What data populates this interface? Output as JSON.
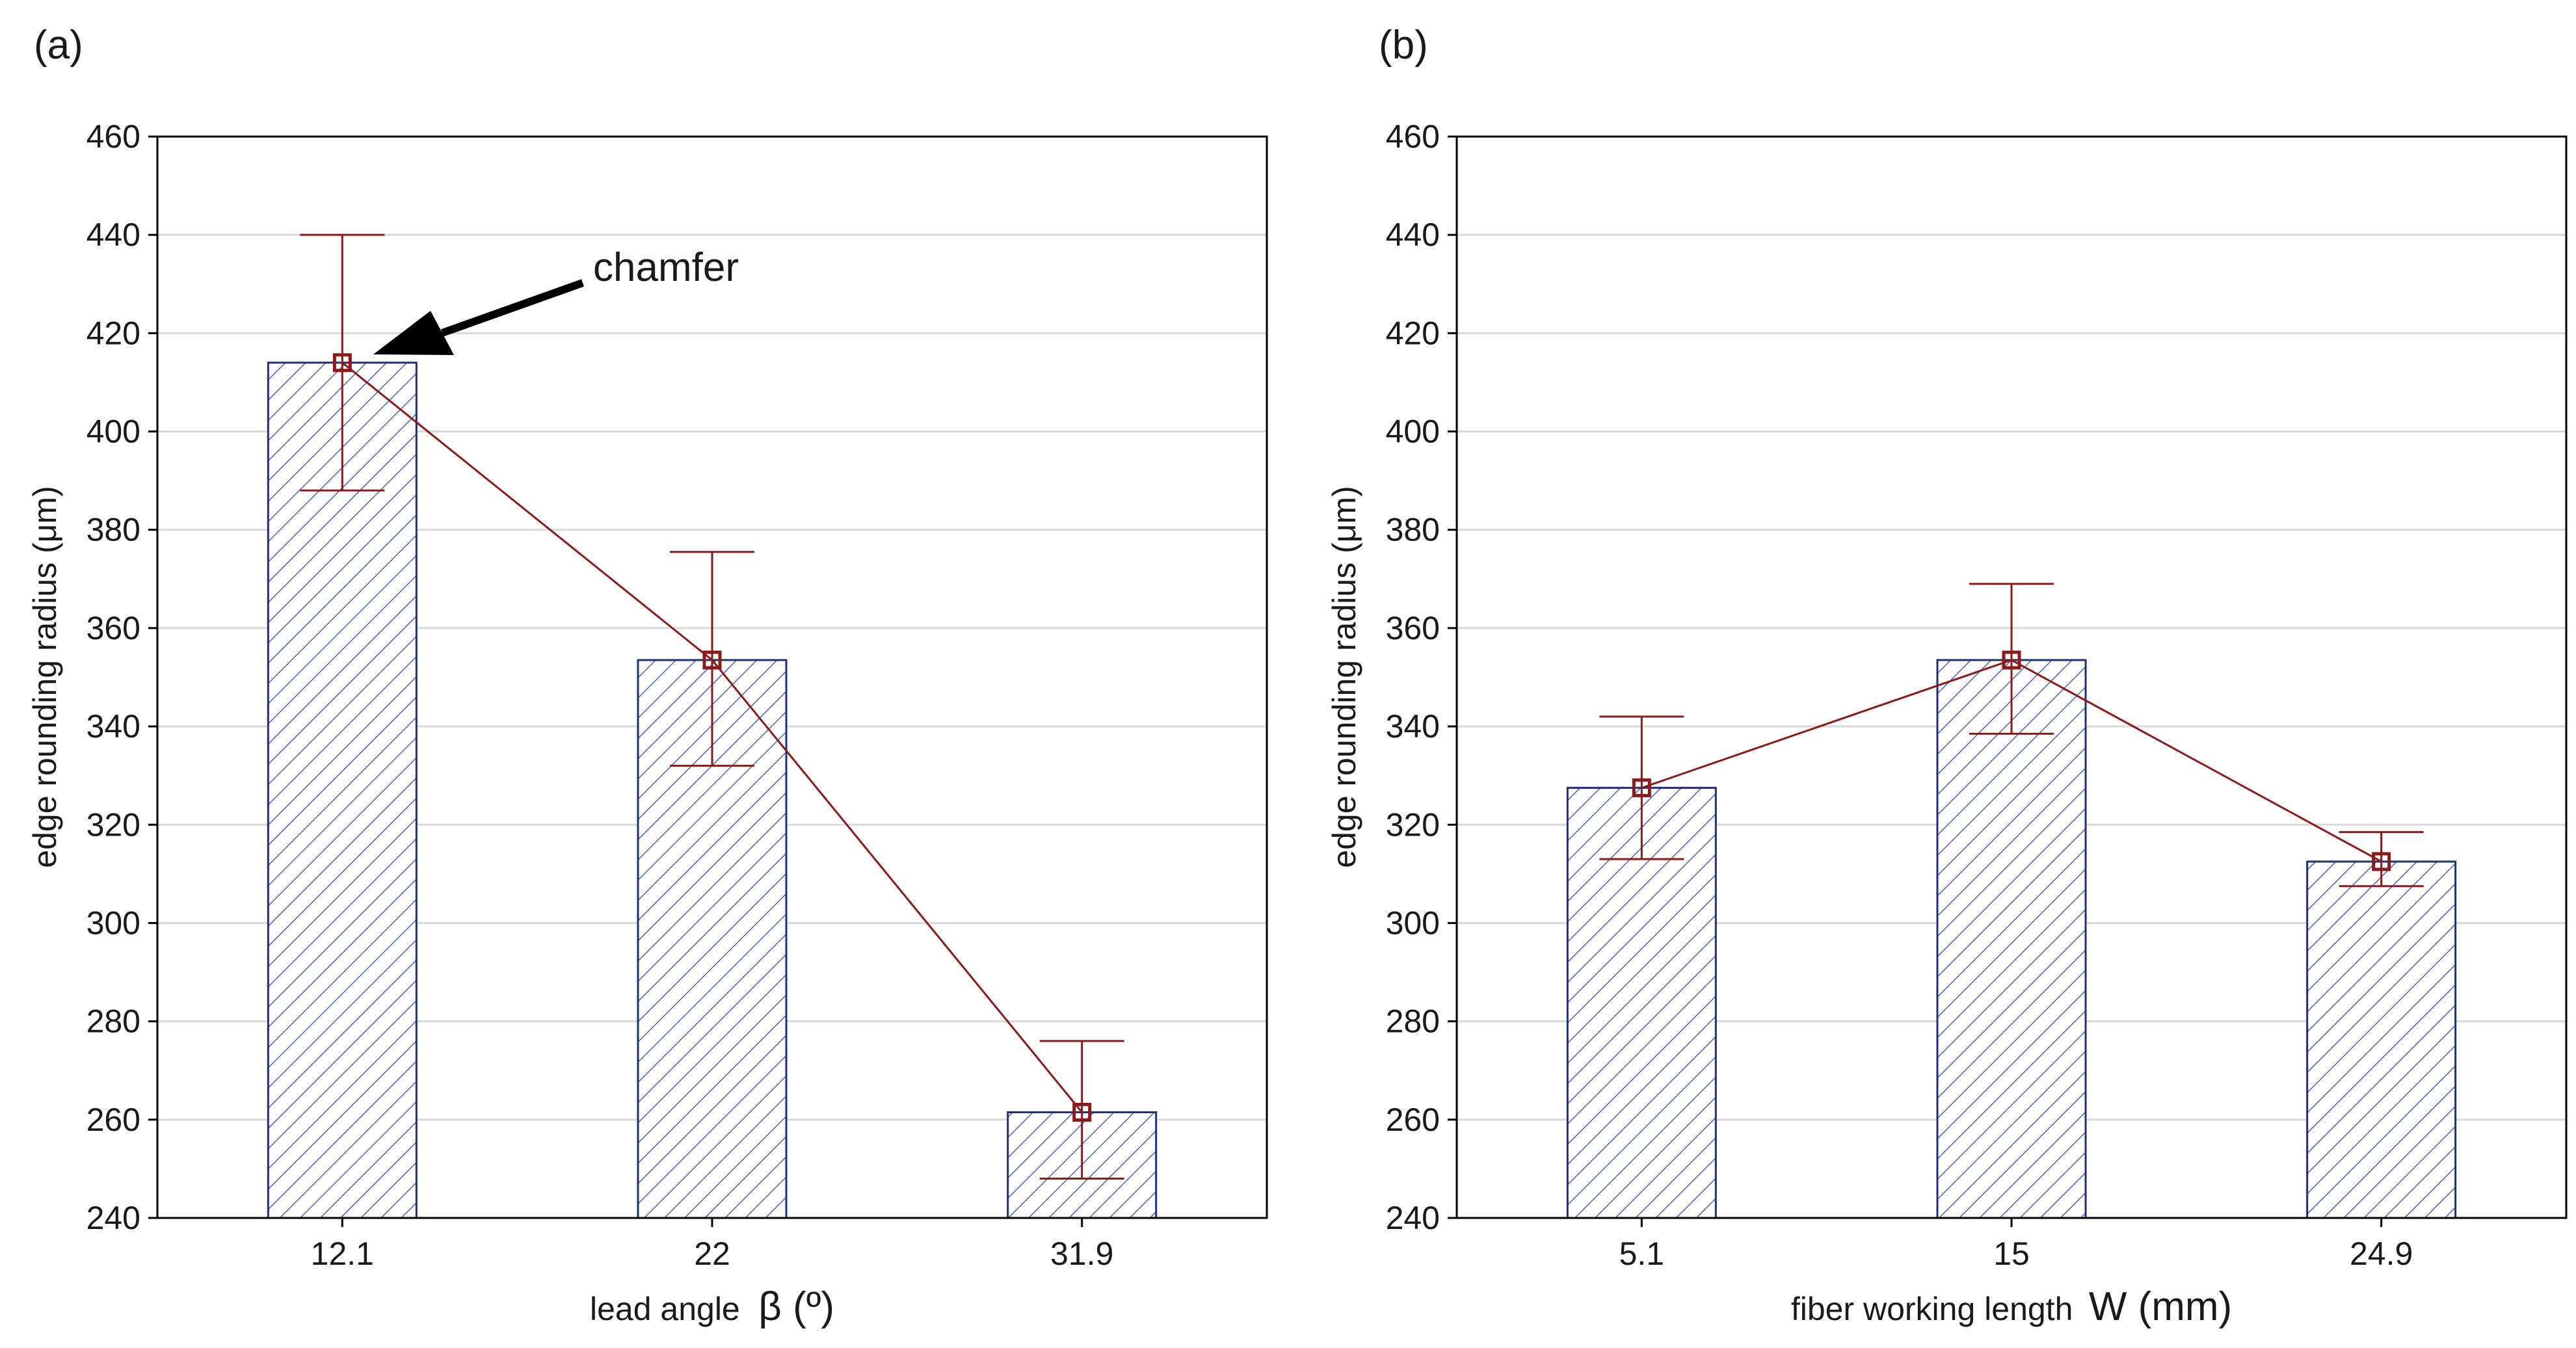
{
  "colors": {
    "bar_outline": "#1f2f7a",
    "hatch": "#4a63b0",
    "series": "#8b1a1a",
    "grid": "#d9d9d9",
    "frame": "#000000",
    "background": "#ffffff"
  },
  "chart_data": [
    {
      "type": "bar",
      "panel_label": "(a)",
      "categories": [
        "12.1",
        "22",
        "31.9"
      ],
      "values": [
        414,
        353.5,
        261.5
      ],
      "error_low": [
        388,
        332,
        248
      ],
      "error_high": [
        440,
        375.5,
        276
      ],
      "ylim": [
        240,
        460
      ],
      "yticks": [
        240,
        260,
        280,
        300,
        320,
        340,
        360,
        380,
        400,
        420,
        440,
        460
      ],
      "ylabel": "edge rounding radius  (μm)",
      "xlabel_text": "lead angle",
      "xlabel_symbol": "β  (º)",
      "grid": true,
      "series_style": "bars with hatch, connected mean markers with error bars",
      "annotation": {
        "text": "chamfer",
        "target_category": "12.1"
      }
    },
    {
      "type": "bar",
      "panel_label": "(b)",
      "categories": [
        "5.1",
        "15",
        "24.9"
      ],
      "values": [
        327.5,
        353.5,
        312.5
      ],
      "error_low": [
        313,
        338.5,
        307.5
      ],
      "error_high": [
        342,
        369,
        318.5
      ],
      "ylim": [
        240,
        460
      ],
      "yticks": [
        240,
        260,
        280,
        300,
        320,
        340,
        360,
        380,
        400,
        420,
        440,
        460
      ],
      "ylabel": "edge rounding radius  (μm)",
      "xlabel_text": "fiber working length",
      "xlabel_symbol": "W (mm)",
      "grid": true,
      "series_style": "bars with hatch, connected mean markers with error bars"
    }
  ]
}
